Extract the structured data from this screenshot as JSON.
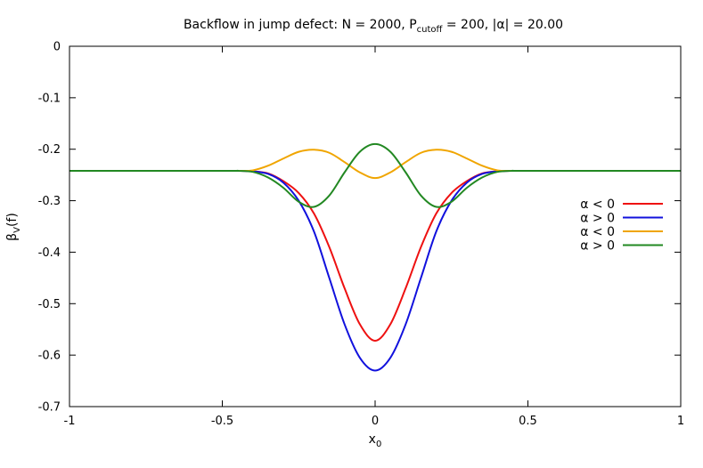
{
  "chart_data": {
    "type": "line",
    "title": {
      "prefix": "Backflow in jump defect: N = 2000, P",
      "sub": "cutoff",
      "suffix": " = 200, |α| = 20.00"
    },
    "xlabel": {
      "base": "x",
      "sub": "0"
    },
    "ylabel": {
      "base": "β",
      "sub": "V",
      "suffix": "(f)"
    },
    "xlim": [
      -1,
      1
    ],
    "ylim": [
      -0.7,
      0
    ],
    "xticks": [
      {
        "value": -1,
        "label": "-1"
      },
      {
        "value": -0.5,
        "label": "-0.5"
      },
      {
        "value": 0,
        "label": "0"
      },
      {
        "value": 0.5,
        "label": "0.5"
      },
      {
        "value": 1,
        "label": "1"
      }
    ],
    "yticks": [
      {
        "value": 0,
        "label": "0"
      },
      {
        "value": -0.1,
        "label": "-0.1"
      },
      {
        "value": -0.2,
        "label": "-0.2"
      },
      {
        "value": -0.3,
        "label": "-0.3"
      },
      {
        "value": -0.4,
        "label": "-0.4"
      },
      {
        "value": -0.5,
        "label": "-0.5"
      },
      {
        "value": -0.6,
        "label": "-0.6"
      },
      {
        "value": -0.7,
        "label": "-0.7"
      }
    ],
    "grid": false,
    "legend_position": "right",
    "x": [
      -1.0,
      -0.5,
      -0.45,
      -0.4,
      -0.35,
      -0.3,
      -0.25,
      -0.2,
      -0.15,
      -0.1,
      -0.05,
      0.0,
      0.05,
      0.1,
      0.15,
      0.2,
      0.25,
      0.3,
      0.35,
      0.4,
      0.45,
      0.5,
      1.0
    ],
    "series": [
      {
        "name": "α < 0",
        "color": "#ee1111",
        "values": [
          -0.242,
          -0.242,
          -0.242,
          -0.243,
          -0.247,
          -0.262,
          -0.285,
          -0.325,
          -0.39,
          -0.47,
          -0.54,
          -0.572,
          -0.54,
          -0.47,
          -0.39,
          -0.325,
          -0.285,
          -0.262,
          -0.247,
          -0.243,
          -0.242,
          -0.242,
          -0.242
        ]
      },
      {
        "name": "α > 0",
        "color": "#1111dd",
        "values": [
          -0.242,
          -0.242,
          -0.242,
          -0.243,
          -0.248,
          -0.265,
          -0.3,
          -0.36,
          -0.45,
          -0.54,
          -0.605,
          -0.63,
          -0.605,
          -0.54,
          -0.45,
          -0.36,
          -0.3,
          -0.265,
          -0.248,
          -0.243,
          -0.242,
          -0.242,
          -0.242
        ]
      },
      {
        "name": "α < 0",
        "color": "#f0a500",
        "values": [
          -0.242,
          -0.242,
          -0.242,
          -0.241,
          -0.232,
          -0.218,
          -0.205,
          -0.201,
          -0.207,
          -0.225,
          -0.245,
          -0.256,
          -0.245,
          -0.225,
          -0.207,
          -0.201,
          -0.205,
          -0.218,
          -0.232,
          -0.241,
          -0.242,
          -0.242,
          -0.242
        ]
      },
      {
        "name": "α > 0",
        "color": "#228822",
        "values": [
          -0.242,
          -0.242,
          -0.242,
          -0.244,
          -0.255,
          -0.275,
          -0.302,
          -0.312,
          -0.29,
          -0.245,
          -0.205,
          -0.19,
          -0.205,
          -0.245,
          -0.29,
          -0.312,
          -0.302,
          -0.275,
          -0.255,
          -0.244,
          -0.242,
          -0.242,
          -0.242
        ]
      }
    ]
  }
}
